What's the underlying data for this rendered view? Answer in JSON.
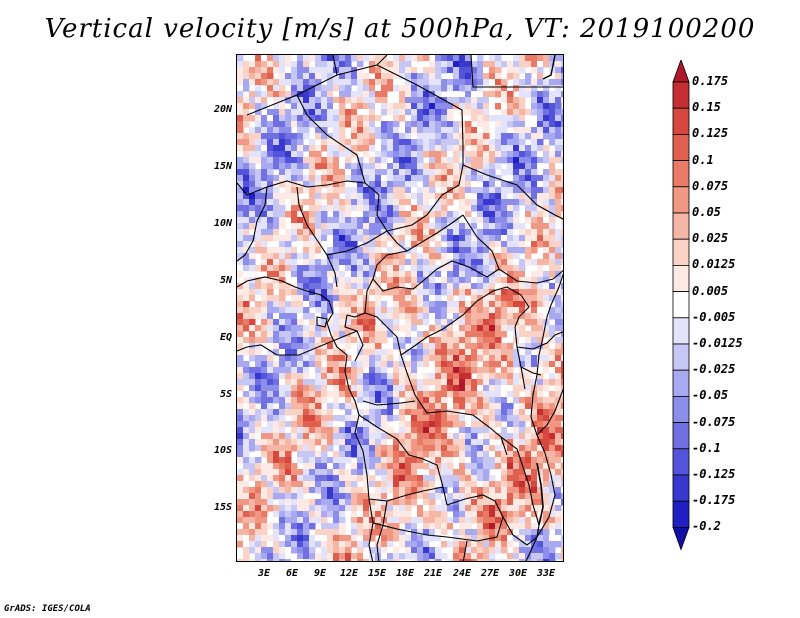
{
  "title": "Vertical velocity [m/s] at 500hPa, VT: 2019100200",
  "footer": "GrADS: IGES/COLA",
  "map": {
    "lat_labels": [
      "20N",
      "15N",
      "10N",
      "5N",
      "EQ",
      "5S",
      "10S",
      "15S"
    ],
    "lon_labels": [
      "3E",
      "6E",
      "9E",
      "12E",
      "15E",
      "18E",
      "21E",
      "24E",
      "27E",
      "30E",
      "33E"
    ]
  },
  "colorbar": {
    "levels": [
      "0.175",
      "0.15",
      "0.125",
      "0.1",
      "0.075",
      "0.05",
      "0.025",
      "0.0125",
      "0.005",
      "-0.005",
      "-0.0125",
      "-0.025",
      "-0.05",
      "-0.075",
      "-0.1",
      "-0.125",
      "-0.175",
      "-0.2"
    ],
    "colors": [
      "#b2182b",
      "#c62f32",
      "#d6473f",
      "#e0604f",
      "#e97a66",
      "#f09884",
      "#f6b6a6",
      "#fad2c6",
      "#fdeae4",
      "#ffffff",
      "#e3e3fb",
      "#c7c7f6",
      "#a9a9f1",
      "#8d8dea",
      "#7070e2",
      "#5454da",
      "#3838cf",
      "#2020c2",
      "#1010a8"
    ]
  }
}
